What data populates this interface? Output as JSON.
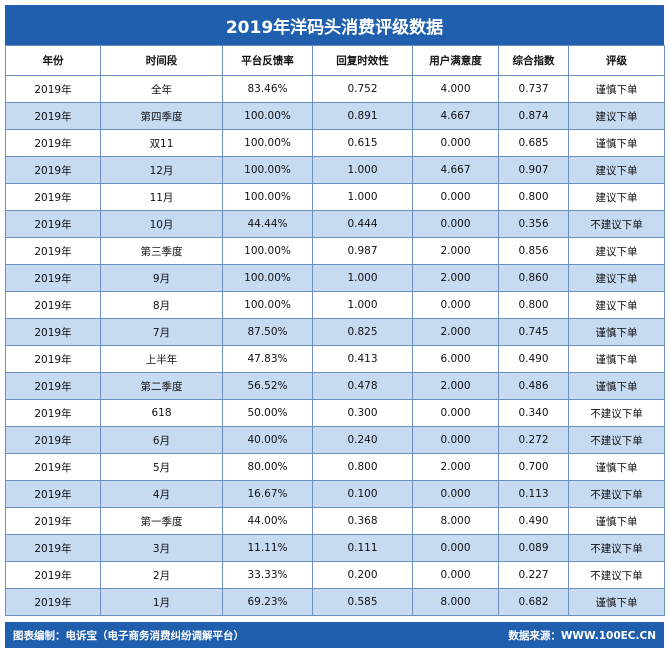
{
  "title": "2019年洋码头消费评级数据",
  "table": {
    "columns": [
      "年份",
      "时间段",
      "平台反馈率",
      "回复时效性",
      "用户满意度",
      "综合指数",
      "评级"
    ],
    "rows": [
      [
        "2019年",
        "全年",
        "83.46%",
        "0.752",
        "4.000",
        "0.737",
        "谨慎下单"
      ],
      [
        "2019年",
        "第四季度",
        "100.00%",
        "0.891",
        "4.667",
        "0.874",
        "建议下单"
      ],
      [
        "2019年",
        "双11",
        "100.00%",
        "0.615",
        "0.000",
        "0.685",
        "谨慎下单"
      ],
      [
        "2019年",
        "12月",
        "100.00%",
        "1.000",
        "4.667",
        "0.907",
        "建议下单"
      ],
      [
        "2019年",
        "11月",
        "100.00%",
        "1.000",
        "0.000",
        "0.800",
        "建议下单"
      ],
      [
        "2019年",
        "10月",
        "44.44%",
        "0.444",
        "0.000",
        "0.356",
        "不建议下单"
      ],
      [
        "2019年",
        "第三季度",
        "100.00%",
        "0.987",
        "2.000",
        "0.856",
        "建议下单"
      ],
      [
        "2019年",
        "9月",
        "100.00%",
        "1.000",
        "2.000",
        "0.860",
        "建议下单"
      ],
      [
        "2019年",
        "8月",
        "100.00%",
        "1.000",
        "0.000",
        "0.800",
        "建议下单"
      ],
      [
        "2019年",
        "7月",
        "87.50%",
        "0.825",
        "2.000",
        "0.745",
        "谨慎下单"
      ],
      [
        "2019年",
        "上半年",
        "47.83%",
        "0.413",
        "6.000",
        "0.490",
        "谨慎下单"
      ],
      [
        "2019年",
        "第二季度",
        "56.52%",
        "0.478",
        "2.000",
        "0.486",
        "谨慎下单"
      ],
      [
        "2019年",
        "618",
        "50.00%",
        "0.300",
        "0.000",
        "0.340",
        "不建议下单"
      ],
      [
        "2019年",
        "6月",
        "40.00%",
        "0.240",
        "0.000",
        "0.272",
        "不建议下单"
      ],
      [
        "2019年",
        "5月",
        "80.00%",
        "0.800",
        "2.000",
        "0.700",
        "谨慎下单"
      ],
      [
        "2019年",
        "4月",
        "16.67%",
        "0.100",
        "0.000",
        "0.113",
        "不建议下单"
      ],
      [
        "2019年",
        "第一季度",
        "44.00%",
        "0.368",
        "8.000",
        "0.490",
        "谨慎下单"
      ],
      [
        "2019年",
        "3月",
        "11.11%",
        "0.111",
        "0.000",
        "0.089",
        "不建议下单"
      ],
      [
        "2019年",
        "2月",
        "33.33%",
        "0.200",
        "0.000",
        "0.227",
        "不建议下单"
      ],
      [
        "2019年",
        "1月",
        "69.23%",
        "0.585",
        "8.000",
        "0.682",
        "谨慎下单"
      ]
    ]
  },
  "footer": {
    "left": "图表编制：电诉宝（电子商务消费纠纷调解平台）",
    "right": "数据来源：WWW.100EC.CN"
  }
}
